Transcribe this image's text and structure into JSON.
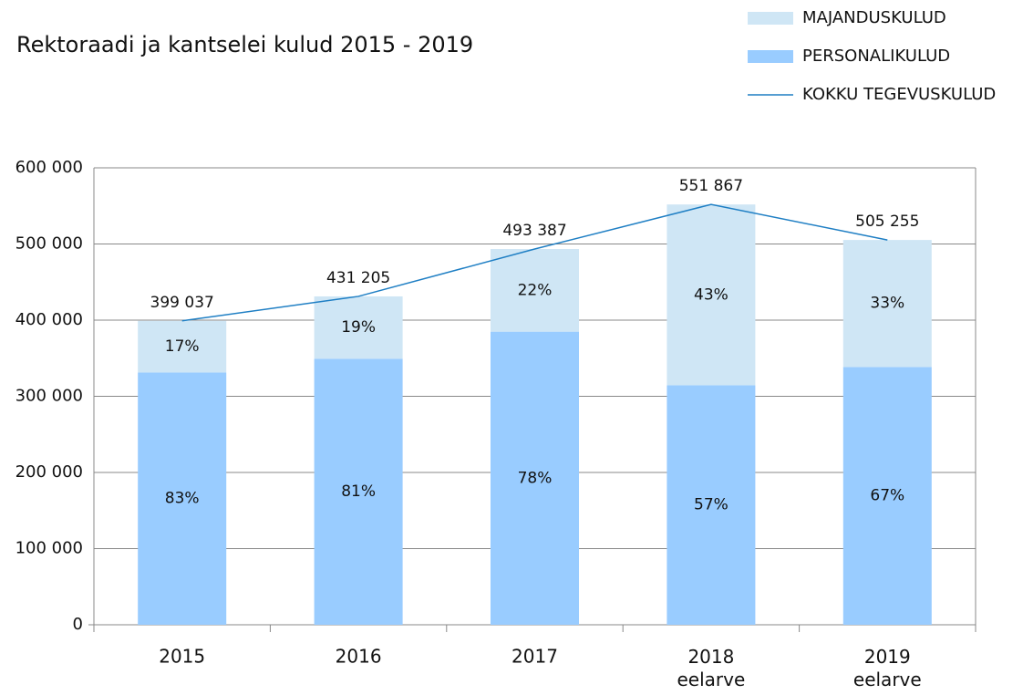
{
  "chart_data": {
    "type": "stacked-bar-line",
    "title": "Rektoraadi ja kantselei kulud 2015 - 2019",
    "categories": [
      "2015",
      "2016",
      "2017",
      "2018\neelarve",
      "2019\neelarve"
    ],
    "series": [
      {
        "name": "PERSONALIKULUD",
        "kind": "bar",
        "color": "#99ccff",
        "values": [
          331201,
          349276,
          384842,
          314564,
          338521
        ],
        "shares": [
          83,
          81,
          78,
          57,
          67
        ],
        "share_labels": [
          "83%",
          "81%",
          "78%",
          "57%",
          "67%"
        ]
      },
      {
        "name": "MAJANDUSKULUD",
        "kind": "bar",
        "color": "#cfe6f5",
        "values": [
          67836,
          81929,
          108545,
          237303,
          166734
        ],
        "shares": [
          17,
          19,
          22,
          43,
          33
        ],
        "share_labels": [
          "17%",
          "19%",
          "22%",
          "43%",
          "33%"
        ]
      },
      {
        "name": "KOKKU TEGEVUSKULUD",
        "kind": "line",
        "color": "#1f7fc4",
        "values": [
          399037,
          431205,
          493387,
          551867,
          505255
        ],
        "value_labels": [
          "399 037",
          "431 205",
          "493 387",
          "551 867",
          "505 255"
        ]
      }
    ],
    "ylim": [
      0,
      600000
    ],
    "yticks": [
      0,
      {
        "value": 100000,
        "label": "100 000"
      },
      {
        "value": 200000,
        "label": "200 000"
      },
      {
        "value": 300000,
        "label": "300 000"
      },
      {
        "value": 400000,
        "label": "400 000"
      },
      {
        "value": 500000,
        "label": "500 000"
      },
      {
        "value": 600000,
        "label": "600 000"
      }
    ],
    "grid": true,
    "legend": "top-right"
  }
}
